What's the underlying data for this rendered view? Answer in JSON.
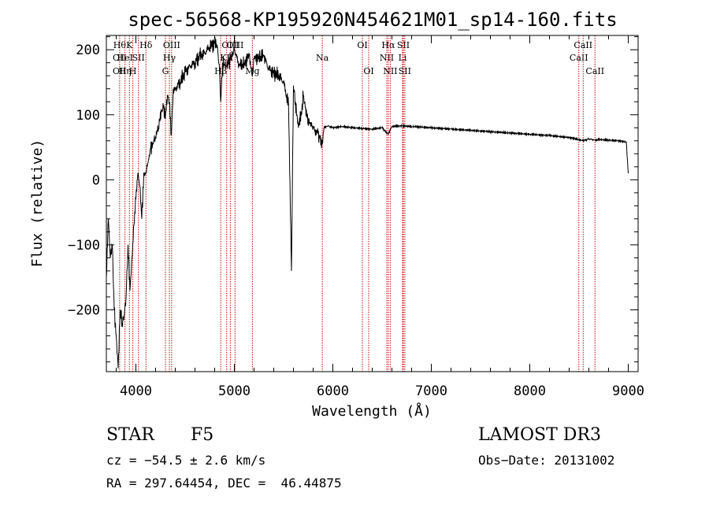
{
  "chart_data": {
    "type": "line",
    "title": "spec-56568-KP195920N454621M01_sp14-160.fits",
    "xlabel": "Wavelength (Å)",
    "ylabel": "Flux (relative)",
    "xlim": [
      3700,
      9100
    ],
    "ylim": [
      -295,
      222
    ],
    "xticks": [
      4000,
      5000,
      6000,
      7000,
      8000,
      9000
    ],
    "yticks": [
      -200,
      -100,
      0,
      100,
      200
    ],
    "grid": false,
    "line_color": "#000000",
    "marker_color": "#cc0000",
    "spectral_lines": [
      {
        "wavelength": 3835,
        "label": "Hθ",
        "row": 0
      },
      {
        "wavelength": 3835,
        "label": "OII",
        "row": 1
      },
      {
        "wavelength": 3835,
        "label": "OII",
        "row": 2
      },
      {
        "wavelength": 3889,
        "label": "HeI",
        "row": 1
      },
      {
        "wavelength": 3889,
        "label": "Hη",
        "row": 2
      },
      {
        "wavelength": 3934,
        "label": "K",
        "row": 0
      },
      {
        "wavelength": 3969,
        "label": "H",
        "row": 2
      },
      {
        "wavelength": 4026,
        "label": "SII",
        "row": 1
      },
      {
        "wavelength": 4102,
        "label": "Hδ",
        "row": 0
      },
      {
        "wavelength": 4300,
        "label": "G",
        "row": 2
      },
      {
        "wavelength": 4340,
        "label": "Hγ",
        "row": 1
      },
      {
        "wavelength": 4363,
        "label": "OIII",
        "row": 0
      },
      {
        "wavelength": 4861,
        "label": "Hβ",
        "row": 2
      },
      {
        "wavelength": 4959,
        "label": "OIII",
        "row": 0
      },
      {
        "wavelength": 5007,
        "label": "OIII",
        "row": 0
      },
      {
        "wavelength": 4922,
        "label": "KII",
        "row": 1
      },
      {
        "wavelength": 5183,
        "label": "Mg",
        "row": 2
      },
      {
        "wavelength": 5893,
        "label": "Na",
        "row": 1
      },
      {
        "wavelength": 6300,
        "label": "OI",
        "row": 0
      },
      {
        "wavelength": 6364,
        "label": "OI",
        "row": 2
      },
      {
        "wavelength": 6548,
        "label": "NII",
        "row": 1
      },
      {
        "wavelength": 6563,
        "label": "Hα",
        "row": 0
      },
      {
        "wavelength": 6583,
        "label": "NII",
        "row": 2
      },
      {
        "wavelength": 6708,
        "label": "Li",
        "row": 1
      },
      {
        "wavelength": 6716,
        "label": "SII",
        "row": 0
      },
      {
        "wavelength": 6731,
        "label": "SII",
        "row": 2
      },
      {
        "wavelength": 8498,
        "label": "CaII",
        "row": 1
      },
      {
        "wavelength": 8542,
        "label": "CaII",
        "row": 0
      },
      {
        "wavelength": 8662,
        "label": "CaII",
        "row": 2
      }
    ],
    "spectrum": {
      "x": [
        3700,
        3720,
        3740,
        3760,
        3780,
        3800,
        3820,
        3840,
        3860,
        3880,
        3900,
        3920,
        3940,
        3960,
        3980,
        4000,
        4020,
        4040,
        4060,
        4080,
        4100,
        4120,
        4150,
        4180,
        4200,
        4230,
        4260,
        4280,
        4300,
        4320,
        4340,
        4360,
        4380,
        4400,
        4450,
        4500,
        4550,
        4600,
        4650,
        4700,
        4750,
        4800,
        4830,
        4850,
        4861,
        4880,
        4920,
        4960,
        5000,
        5050,
        5100,
        5150,
        5183,
        5200,
        5250,
        5300,
        5350,
        5400,
        5450,
        5500,
        5550,
        5580,
        5600,
        5620,
        5650,
        5680,
        5700,
        5720,
        5750,
        5780,
        5800,
        5850,
        5893,
        5910,
        5950,
        6000,
        6100,
        6200,
        6300,
        6400,
        6500,
        6563,
        6600,
        6700,
        6800,
        6900,
        7000,
        7200,
        7400,
        7600,
        7800,
        8000,
        8200,
        8400,
        8498,
        8542,
        8600,
        8662,
        8700,
        8800,
        8900,
        8980,
        9000
      ],
      "y": [
        -150,
        -60,
        -120,
        -100,
        -200,
        -240,
        -290,
        -200,
        -220,
        -210,
        -180,
        -100,
        -170,
        -120,
        -70,
        -30,
        10,
        -10,
        -60,
        10,
        10,
        25,
        50,
        60,
        65,
        80,
        105,
        110,
        95,
        130,
        120,
        70,
        140,
        140,
        150,
        165,
        175,
        180,
        190,
        195,
        205,
        210,
        200,
        165,
        120,
        180,
        175,
        185,
        200,
        175,
        180,
        190,
        160,
        185,
        190,
        190,
        170,
        165,
        160,
        150,
        115,
        -140,
        145,
        120,
        80,
        100,
        130,
        110,
        95,
        85,
        80,
        70,
        55,
        80,
        83,
        80,
        82,
        80,
        79,
        78,
        80,
        70,
        82,
        83,
        82,
        81,
        80,
        78,
        76,
        74,
        72,
        70,
        68,
        65,
        62,
        60,
        63,
        61,
        62,
        61,
        60,
        58,
        10
      ]
    },
    "info": {
      "class": "STAR",
      "subclass": "F5",
      "cz": "cz = −54.5 ± 2.6 km/s",
      "coords": "RA = 297.64454, DEC =  46.44875",
      "survey": "LAMOST DR3",
      "obsdate": "Obs−Date: 20131002"
    }
  }
}
